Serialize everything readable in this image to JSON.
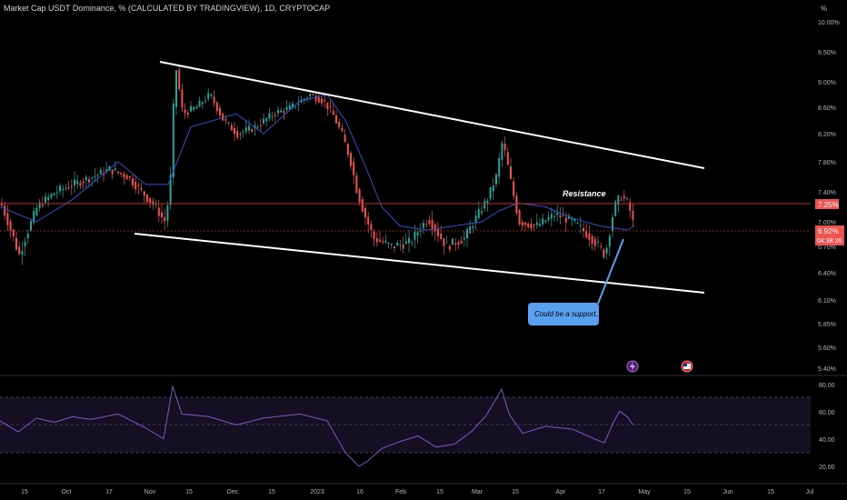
{
  "header": {
    "title": "Market Cap USDT Dominance, % (CALCULATED BY TRADINGVIEW), 1D, CRYPTOCAP",
    "unit_label": "%"
  },
  "colors": {
    "background": "#000000",
    "up": "#26a69a",
    "down": "#ef5350",
    "ma_line": "#3550c8",
    "rsi_line": "#7e57c2",
    "rsi_band": "#150f24",
    "trendline": "#ffffff",
    "resistance_line": "#c62828",
    "grid_text": "#b2b5be",
    "last_price_bg": "#ef5350",
    "resistance_tag_bg": "#ef5350",
    "callout_bg": "#5aa0f0"
  },
  "annotations": {
    "resistance": "Resistance",
    "support_callout": "Could be a support."
  },
  "price_tags": {
    "resistance_value": "7.25%",
    "last_value": "6.92%",
    "countdown": "04:38:26"
  },
  "chart_data": [
    {
      "type": "candlestick",
      "title": "Market Cap USDT Dominance, % (CALCULATED BY TRADINGVIEW), 1D, CRYPTOCAP",
      "ylim": [
        5.35,
        10.1
      ],
      "y_ticks": [
        "10.00%",
        "9.50%",
        "9.00%",
        "8.60%",
        "8.20%",
        "7.80%",
        "7.40%",
        "7.00%",
        "6.70%",
        "6.40%",
        "6.10%",
        "5.85%",
        "5.60%",
        "5.40%"
      ],
      "x_ticks": [
        "15",
        "Oct",
        "17",
        "Nov",
        "15",
        "Dec",
        "15",
        "2023",
        "16",
        "Feb",
        "15",
        "Mar",
        "15",
        "Apr",
        "17",
        "May",
        "15",
        "Jun",
        "15",
        "Jul"
      ],
      "series": [
        {
          "kind": "moving-average",
          "points": [
            [
              0,
              7.2
            ],
            [
              40,
              7.0
            ],
            [
              80,
              7.3
            ],
            [
              130,
              7.8
            ],
            [
              160,
              7.5
            ],
            [
              185,
              7.5
            ],
            [
              210,
              8.3
            ],
            [
              260,
              8.5
            ],
            [
              290,
              8.2
            ],
            [
              330,
              8.7
            ],
            [
              360,
              8.8
            ],
            [
              380,
              8.4
            ],
            [
              400,
              7.8
            ],
            [
              420,
              7.2
            ],
            [
              440,
              6.95
            ],
            [
              470,
              6.9
            ],
            [
              500,
              6.95
            ],
            [
              530,
              7.0
            ],
            [
              550,
              7.15
            ],
            [
              570,
              7.25
            ],
            [
              600,
              7.2
            ],
            [
              630,
              7.05
            ],
            [
              660,
              6.95
            ],
            [
              690,
              6.9
            ],
            [
              698,
              6.95
            ]
          ]
        },
        {
          "kind": "price",
          "points": [
            [
              0,
              7.25
            ],
            [
              20,
              6.6
            ],
            [
              40,
              7.2
            ],
            [
              60,
              7.4
            ],
            [
              80,
              7.5
            ],
            [
              100,
              7.6
            ],
            [
              120,
              7.7
            ],
            [
              140,
              7.6
            ],
            [
              155,
              7.4
            ],
            [
              170,
              7.2
            ],
            [
              180,
              7.0
            ],
            [
              186,
              7.4
            ],
            [
              192,
              9.3
            ],
            [
              200,
              8.5
            ],
            [
              215,
              8.6
            ],
            [
              230,
              8.8
            ],
            [
              245,
              8.4
            ],
            [
              260,
              8.2
            ],
            [
              280,
              8.3
            ],
            [
              300,
              8.5
            ],
            [
              320,
              8.6
            ],
            [
              340,
              8.8
            ],
            [
              355,
              8.7
            ],
            [
              365,
              8.5
            ],
            [
              375,
              8.2
            ],
            [
              385,
              7.8
            ],
            [
              392,
              7.4
            ],
            [
              400,
              7.1
            ],
            [
              410,
              6.8
            ],
            [
              430,
              6.7
            ],
            [
              450,
              6.75
            ],
            [
              470,
              7.05
            ],
            [
              490,
              6.7
            ],
            [
              510,
              6.8
            ],
            [
              520,
              7.0
            ],
            [
              535,
              7.3
            ],
            [
              545,
              7.6
            ],
            [
              552,
              8.1
            ],
            [
              560,
              7.6
            ],
            [
              570,
              7.0
            ],
            [
              590,
              6.95
            ],
            [
              610,
              7.1
            ],
            [
              630,
              7.0
            ],
            [
              650,
              6.8
            ],
            [
              665,
              6.6
            ],
            [
              675,
              7.2
            ],
            [
              682,
              7.35
            ],
            [
              690,
              7.25
            ],
            [
              697,
              6.92
            ]
          ]
        }
      ]
    },
    {
      "type": "line",
      "title": "",
      "ylim": [
        10,
        82
      ],
      "y_ticks": [
        "80.00",
        "60.00",
        "40.00",
        "20.00"
      ],
      "series": [
        {
          "kind": "rsi",
          "points": [
            [
              0,
              53
            ],
            [
              20,
              45
            ],
            [
              40,
              55
            ],
            [
              60,
              52
            ],
            [
              80,
              56
            ],
            [
              100,
              54
            ],
            [
              130,
              58
            ],
            [
              160,
              48
            ],
            [
              180,
              40
            ],
            [
              190,
              78
            ],
            [
              200,
              58
            ],
            [
              230,
              56
            ],
            [
              260,
              50
            ],
            [
              290,
              55
            ],
            [
              330,
              58
            ],
            [
              360,
              53
            ],
            [
              380,
              30
            ],
            [
              395,
              20
            ],
            [
              405,
              24
            ],
            [
              420,
              33
            ],
            [
              440,
              38
            ],
            [
              460,
              42
            ],
            [
              480,
              34
            ],
            [
              500,
              36
            ],
            [
              520,
              46
            ],
            [
              535,
              57
            ],
            [
              545,
              68
            ],
            [
              552,
              76
            ],
            [
              560,
              58
            ],
            [
              575,
              44
            ],
            [
              600,
              49
            ],
            [
              630,
              47
            ],
            [
              650,
              41
            ],
            [
              665,
              37
            ],
            [
              675,
              52
            ],
            [
              682,
              60
            ],
            [
              690,
              56
            ],
            [
              697,
              50
            ]
          ]
        }
      ]
    }
  ]
}
